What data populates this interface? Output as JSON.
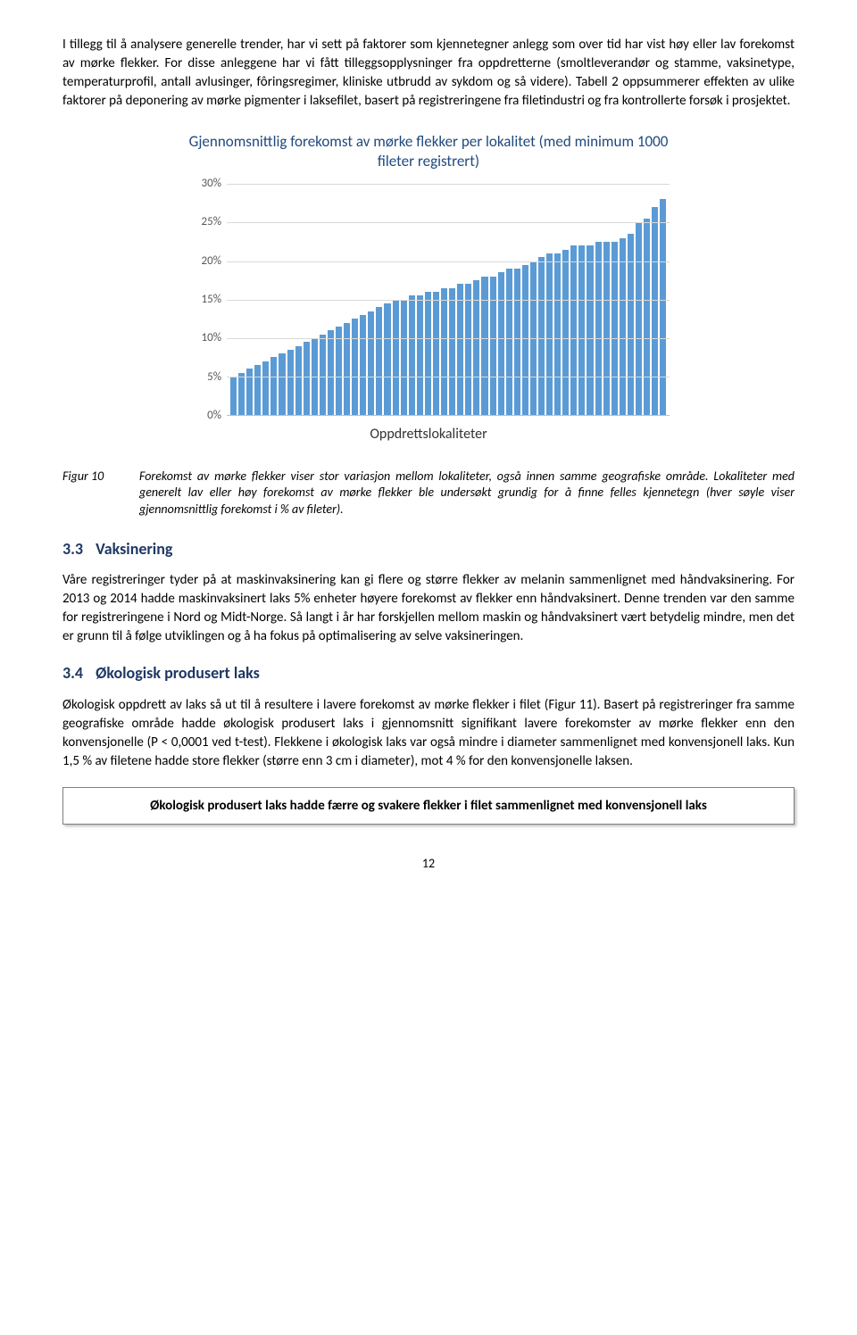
{
  "intro_para": "I tillegg til å analysere generelle trender, har vi sett på faktorer som kjennetegner anlegg som over tid har vist høy eller lav forekomst av mørke flekker. For disse anleggene har vi fått tilleggsopplysninger fra oppdretterne (smoltleverandør og stamme, vaksinetype, temperaturprofil, antall avlusinger, fôringsregimer, kliniske utbrudd av sykdom og så videre). Tabell 2 oppsummerer effekten av ulike faktorer på deponering av mørke pigmenter i laksefilet, basert på registreringene fra filetindustri og fra kontrollerte forsøk i prosjektet.",
  "chart": {
    "title": "Gjennomsnittlig forekomst av mørke flekker per lokalitet (med minimum 1000 fileter registrert)",
    "y_ticks": [
      "0%",
      "5%",
      "10%",
      "15%",
      "20%",
      "25%",
      "30%"
    ],
    "y_max": 30,
    "bar_color": "#5b9bd5",
    "grid_color": "#d9d9d9",
    "axis_line_color": "#bfbfbf",
    "values": [
      5,
      5.5,
      6,
      6.5,
      7,
      7.5,
      8,
      8.5,
      9,
      9.5,
      10,
      10.5,
      11,
      11.5,
      12,
      12.5,
      13,
      13.5,
      14,
      14.5,
      15,
      15,
      15.5,
      15.5,
      16,
      16,
      16.5,
      16.5,
      17,
      17,
      17.5,
      18,
      18,
      18.5,
      19,
      19,
      19.5,
      20,
      20.5,
      21,
      21,
      21.5,
      22,
      22,
      22,
      22.5,
      22.5,
      22.5,
      23,
      23.5,
      25,
      25.5,
      27,
      28
    ],
    "x_label": "Oppdrettslokaliteter"
  },
  "figure": {
    "label": "Figur 10",
    "caption": "Forekomst av mørke flekker viser stor variasjon mellom lokaliteter, også innen samme geografiske område. Lokaliteter med generelt lav eller høy forekomst av mørke flekker ble undersøkt grundig for å finne felles kjennetegn (hver søyle viser gjennomsnittlig forekomst i % av fileter)."
  },
  "section33": {
    "num": "3.3",
    "title": "Vaksinering",
    "body": "Våre registreringer tyder på at maskinvaksinering kan gi flere og større flekker av melanin sammenlignet med håndvaksinering. For 2013 og 2014 hadde maskinvaksinert laks 5% enheter høyere forekomst av flekker enn håndvaksinert. Denne trenden var den samme for registreringene i Nord og Midt-Norge. Så langt i år har forskjellen mellom maskin og håndvaksinert vært betydelig mindre, men det er grunn til å følge utviklingen og å ha fokus på optimalisering av selve vaksineringen."
  },
  "section34": {
    "num": "3.4",
    "title": "Økologisk produsert laks",
    "body": "Økologisk oppdrett av laks så ut til å resultere i lavere forekomst av mørke flekker i filet (Figur 11). Basert på registreringer fra samme geografiske område hadde økologisk produsert laks i gjennomsnitt signifikant lavere forekomster av mørke flekker enn den konvensjonelle (P < 0,0001 ved t-test). Flekkene i økologisk laks var også mindre i diameter sammenlignet med konvensjonell laks. Kun 1,5 % av filetene hadde store flekker (større enn 3 cm i diameter), mot 4 % for den konvensjonelle laksen."
  },
  "callout": "Økologisk produsert laks hadde færre og svakere flekker i filet sammenlignet med konvensjonell laks",
  "page_number": "12"
}
